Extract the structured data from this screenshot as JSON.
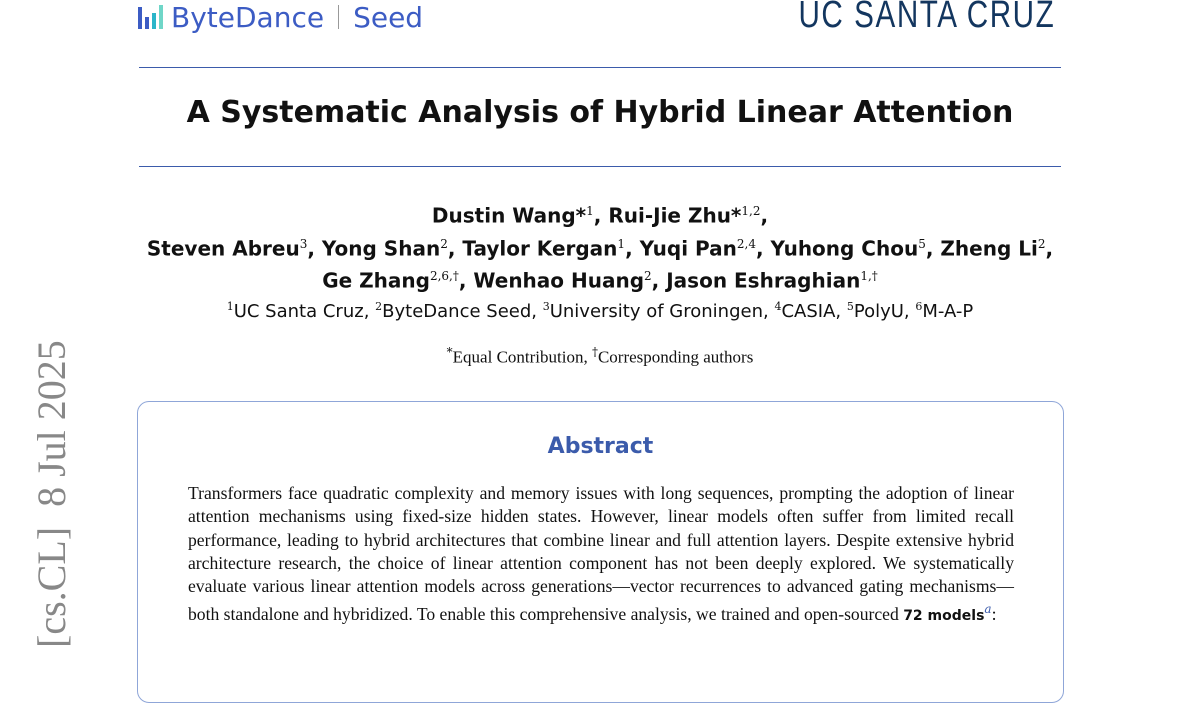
{
  "header": {
    "logo_left": "ByteDance",
    "logo_left_sub": "Seed",
    "logo_right": "UC SANTA CRUZ"
  },
  "title": "A Systematic Analysis of Hybrid Linear Attention",
  "authors": [
    [
      {
        "name": "Dustin Wang*",
        "sup": "1"
      },
      {
        "name": "Rui-Jie Zhu*",
        "sup": "1,2"
      }
    ],
    [
      {
        "name": "Steven Abreu",
        "sup": "3"
      },
      {
        "name": "Yong Shan",
        "sup": "2"
      },
      {
        "name": "Taylor Kergan",
        "sup": "1"
      },
      {
        "name": "Yuqi Pan",
        "sup": "2,4"
      },
      {
        "name": "Yuhong Chou",
        "sup": "5"
      },
      {
        "name": "Zheng Li",
        "sup": "2"
      }
    ],
    [
      {
        "name": "Ge Zhang",
        "sup": "2,6,†"
      },
      {
        "name": "Wenhao Huang",
        "sup": "2"
      },
      {
        "name": "Jason Eshraghian",
        "sup": "1,†"
      }
    ]
  ],
  "affiliations": [
    {
      "sup": "1",
      "name": "UC Santa Cruz"
    },
    {
      "sup": "2",
      "name": "ByteDance Seed"
    },
    {
      "sup": "3",
      "name": "University of Groningen"
    },
    {
      "sup": "4",
      "name": "CASIA"
    },
    {
      "sup": "5",
      "name": "PolyU"
    },
    {
      "sup": "6",
      "name": "M-A-P"
    }
  ],
  "notes": {
    "equal_mark": "*",
    "equal": "Equal Contribution, ",
    "corr_mark": "†",
    "corr": "Corresponding authors"
  },
  "abstract": {
    "heading": "Abstract",
    "text": "Transformers face quadratic complexity and memory issues with long sequences, prompting the adoption of linear attention mechanisms using fixed-size hidden states. However, linear models often suffer from limited recall performance, leading to hybrid architectures that combine linear and full attention layers. Despite extensive hybrid architecture research, the choice of linear attention component has not been deeply explored. We systematically evaluate various linear attention models across generations—vector recurrences to advanced gating mechanisms—both standalone and hybridized. To enable this comprehensive analysis, we trained and open-sourced ",
    "bold": "72 models",
    "footnote": "a",
    "tail": ":"
  },
  "arxiv_stamp": "[cs.CL]  8 Jul 2025",
  "colors": {
    "accent": "#3b5bab",
    "uc_navy": "#13365f",
    "bytedance_blue": "#3c5cc4"
  }
}
